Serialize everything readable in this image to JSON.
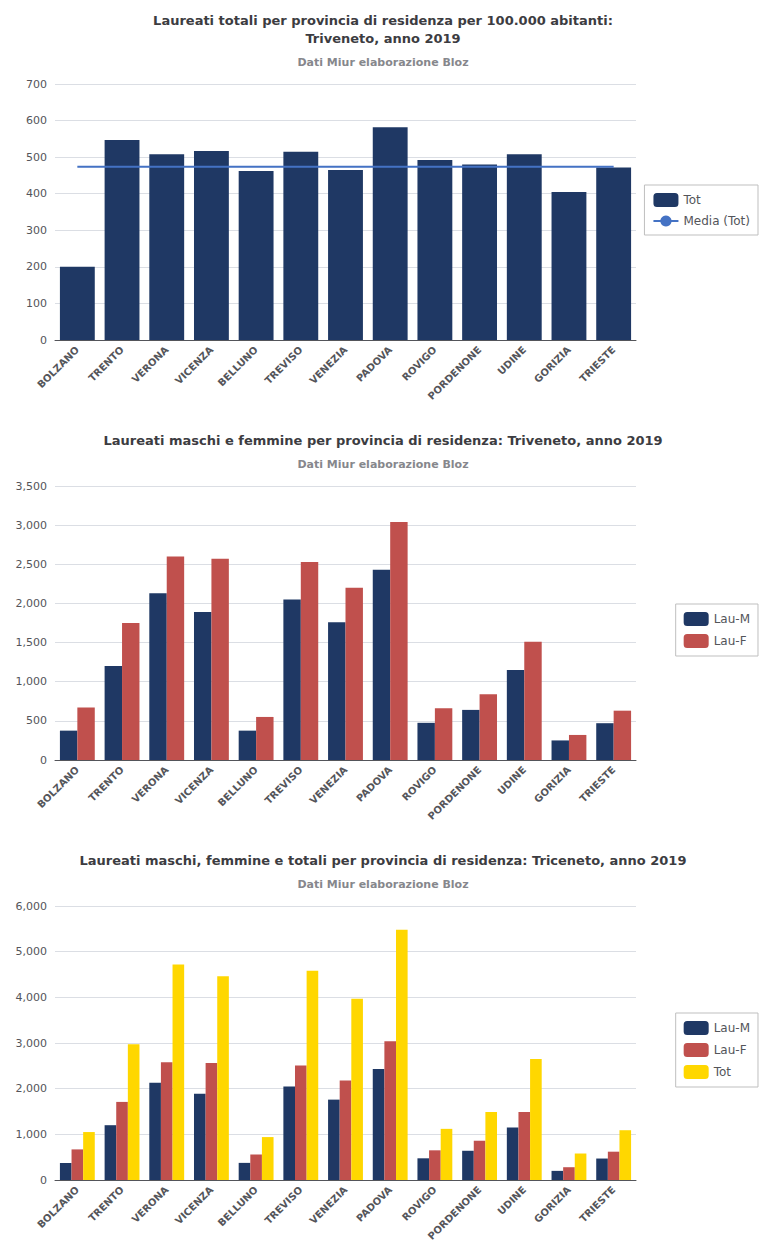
{
  "chart_data": [
    {
      "type": "bar",
      "title": "Laureati totali per provincia di residenza per 100.000 abitanti:\nTriveneto, anno 2019",
      "subtitle": "Dati Miur elaborazione Bloz",
      "categories": [
        "BOLZANO",
        "TRENTO",
        "VERONA",
        "VICENZA",
        "BELLUNO",
        "TREVISO",
        "VENEZIA",
        "PADOVA",
        "ROVIGO",
        "PORDENONE",
        "UDINE",
        "GORIZIA",
        "TRIESTE"
      ],
      "series": [
        {
          "name": "Tot",
          "type": "bar",
          "color": "#1F3864",
          "values": [
            200,
            547,
            508,
            517,
            462,
            515,
            465,
            582,
            492,
            480,
            508,
            405,
            472
          ]
        },
        {
          "name": "Media (Tot)",
          "type": "line",
          "color": "#4472C4",
          "values": [
            474,
            474,
            474,
            474,
            474,
            474,
            474,
            474,
            474,
            474,
            474,
            474,
            474
          ]
        }
      ],
      "ylim": [
        0,
        700
      ],
      "yticks": [
        0,
        100,
        200,
        300,
        400,
        500,
        600,
        700
      ],
      "grid": true,
      "legend": "right"
    },
    {
      "type": "bar",
      "title": "Laureati maschi e femmine per provincia di residenza: Triveneto, anno 2019",
      "subtitle": "Dati Miur elaborazione Bloz",
      "categories": [
        "BOLZANO",
        "TRENTO",
        "VERONA",
        "VICENZA",
        "BELLUNO",
        "TREVISO",
        "VENEZIA",
        "PADOVA",
        "ROVIGO",
        "PORDENONE",
        "UDINE",
        "GORIZIA",
        "TRIESTE"
      ],
      "series": [
        {
          "name": "Lau-M",
          "color": "#1F3864",
          "values": [
            375,
            1200,
            2130,
            1890,
            375,
            2050,
            1760,
            2430,
            475,
            640,
            1150,
            250,
            470
          ]
        },
        {
          "name": "Lau-F",
          "color": "#C0504D",
          "values": [
            670,
            1750,
            2600,
            2570,
            550,
            2530,
            2200,
            3040,
            660,
            840,
            1510,
            320,
            630
          ]
        }
      ],
      "ylim": [
        0,
        3500
      ],
      "yticks": [
        0,
        500,
        1000,
        1500,
        2000,
        2500,
        3000,
        3500
      ],
      "grid": true,
      "legend": "right"
    },
    {
      "type": "bar",
      "title": "Laureati maschi, femmine e totali per provincia di residenza: Triceneto, anno 2019",
      "subtitle": "Dati Miur elaborazione Bloz",
      "categories": [
        "BOLZANO",
        "TRENTO",
        "VERONA",
        "VICENZA",
        "BELLUNO",
        "TREVISO",
        "VENEZIA",
        "PADOVA",
        "ROVIGO",
        "PORDENONE",
        "UDINE",
        "GORIZIA",
        "TRIESTE"
      ],
      "series": [
        {
          "name": "Lau-M",
          "color": "#1F3864",
          "values": [
            375,
            1200,
            2130,
            1890,
            375,
            2050,
            1760,
            2430,
            475,
            640,
            1150,
            200,
            470
          ]
        },
        {
          "name": "Lau-F",
          "color": "#C0504D",
          "values": [
            670,
            1710,
            2580,
            2560,
            560,
            2510,
            2180,
            3040,
            650,
            860,
            1490,
            280,
            620
          ]
        },
        {
          "name": "Tot",
          "color": "#FFD700",
          "values": [
            1050,
            2970,
            4720,
            4460,
            940,
            4580,
            3970,
            5480,
            1120,
            1490,
            2650,
            580,
            1090
          ]
        }
      ],
      "ylim": [
        0,
        6000
      ],
      "yticks": [
        0,
        1000,
        2000,
        3000,
        4000,
        5000,
        6000
      ],
      "grid": true,
      "legend": "right"
    }
  ]
}
